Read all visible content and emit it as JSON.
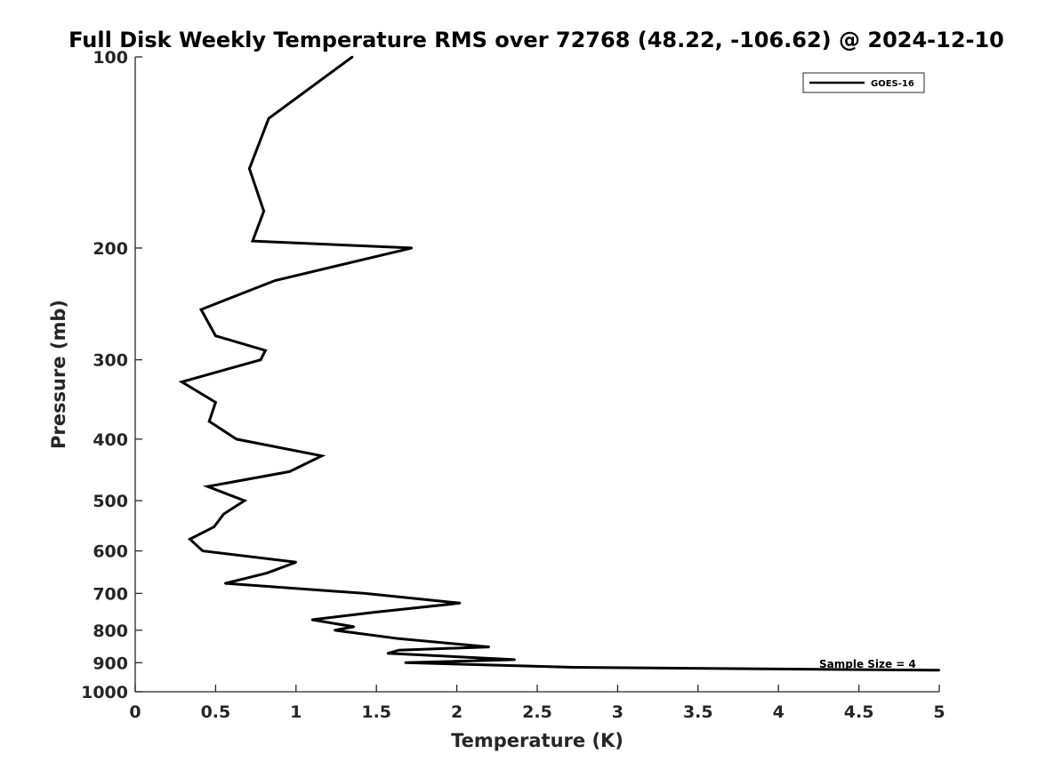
{
  "chart_data": {
    "type": "line",
    "title": "Full Disk Weekly Temperature RMS over 72768 (48.22, -106.62) @ 2024-12-10",
    "xlabel": "Temperature (K)",
    "ylabel": "Pressure (mb)",
    "xlim": [
      0,
      5
    ],
    "ylim": [
      1000,
      100
    ],
    "yscale": "log",
    "y_reversed": true,
    "grid": false,
    "legend_position": "top-right",
    "x_ticks": [
      "0",
      "0.5",
      "1",
      "1.5",
      "2",
      "2.5",
      "3",
      "3.5",
      "4",
      "4.5",
      "5"
    ],
    "y_ticks": [
      "100",
      "200",
      "300",
      "400",
      "500",
      "600",
      "700",
      "800",
      "900",
      "1000"
    ],
    "series": [
      {
        "name": "GOES-16",
        "color": "#000000",
        "points": [
          {
            "x": 1.35,
            "y": 100
          },
          {
            "x": 0.83,
            "y": 125
          },
          {
            "x": 0.71,
            "y": 150
          },
          {
            "x": 0.8,
            "y": 175
          },
          {
            "x": 0.73,
            "y": 195
          },
          {
            "x": 1.72,
            "y": 200
          },
          {
            "x": 0.87,
            "y": 225
          },
          {
            "x": 0.41,
            "y": 250
          },
          {
            "x": 0.5,
            "y": 275
          },
          {
            "x": 0.81,
            "y": 290
          },
          {
            "x": 0.78,
            "y": 300
          },
          {
            "x": 0.29,
            "y": 325
          },
          {
            "x": 0.5,
            "y": 350
          },
          {
            "x": 0.46,
            "y": 375
          },
          {
            "x": 0.63,
            "y": 400
          },
          {
            "x": 1.16,
            "y": 425
          },
          {
            "x": 0.96,
            "y": 450
          },
          {
            "x": 0.45,
            "y": 475
          },
          {
            "x": 0.68,
            "y": 500
          },
          {
            "x": 0.55,
            "y": 525
          },
          {
            "x": 0.49,
            "y": 550
          },
          {
            "x": 0.34,
            "y": 575
          },
          {
            "x": 0.42,
            "y": 600
          },
          {
            "x": 1.0,
            "y": 625
          },
          {
            "x": 0.82,
            "y": 650
          },
          {
            "x": 0.56,
            "y": 675
          },
          {
            "x": 1.43,
            "y": 700
          },
          {
            "x": 2.02,
            "y": 725
          },
          {
            "x": 1.48,
            "y": 750
          },
          {
            "x": 1.1,
            "y": 770
          },
          {
            "x": 1.36,
            "y": 790
          },
          {
            "x": 1.24,
            "y": 800
          },
          {
            "x": 1.64,
            "y": 825
          },
          {
            "x": 2.2,
            "y": 850
          },
          {
            "x": 1.64,
            "y": 860
          },
          {
            "x": 1.57,
            "y": 870
          },
          {
            "x": 2.36,
            "y": 890
          },
          {
            "x": 1.68,
            "y": 900
          },
          {
            "x": 2.72,
            "y": 915
          },
          {
            "x": 5.0,
            "y": 925
          }
        ]
      }
    ],
    "annotations": [
      {
        "text": "Sample Size = 4"
      }
    ]
  }
}
